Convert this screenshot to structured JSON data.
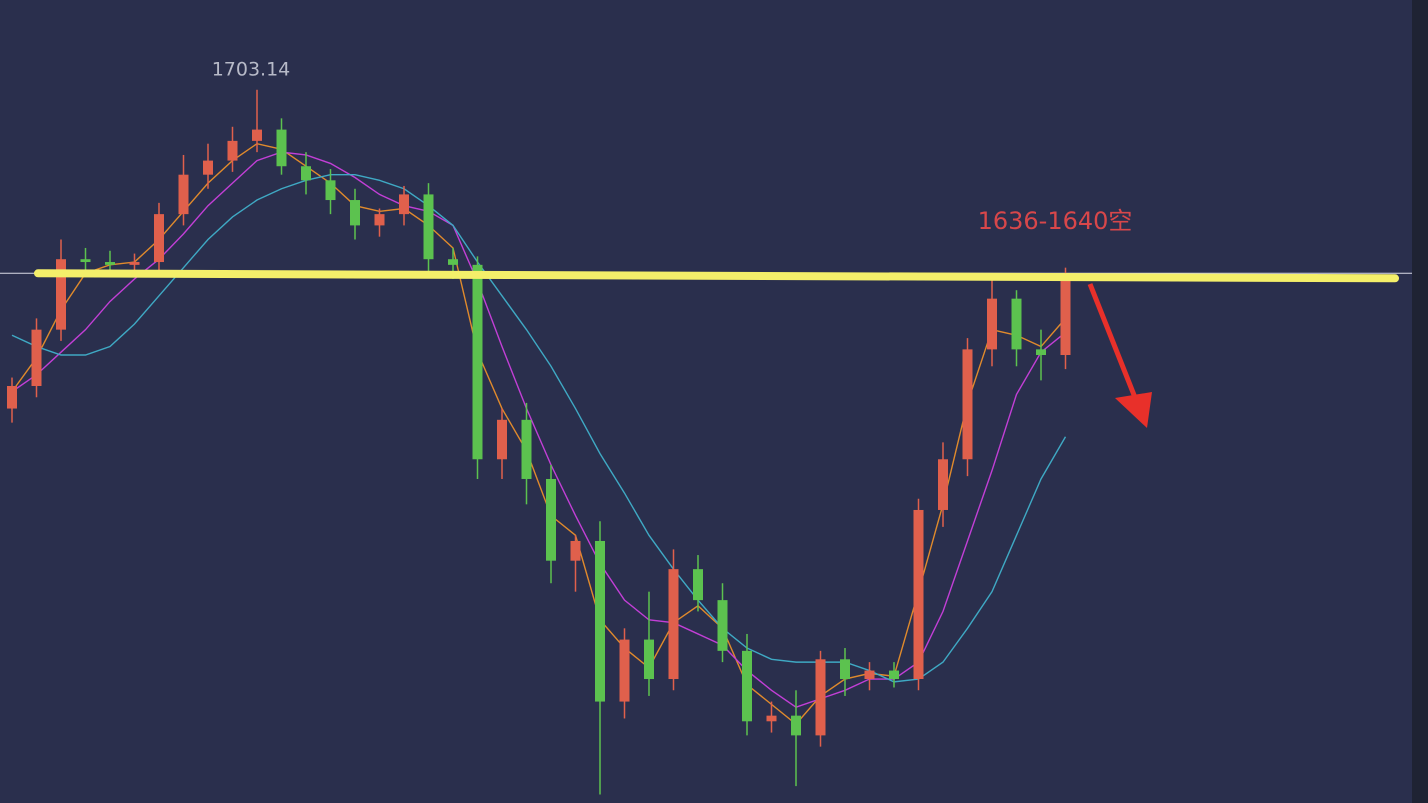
{
  "chart_data": {
    "type": "candlestick",
    "categories": [
      null,
      null,
      null,
      null,
      null,
      null,
      null,
      null,
      null,
      null,
      null,
      null,
      null,
      null,
      null,
      null,
      null,
      null,
      null,
      null,
      null,
      null,
      null,
      null,
      null,
      null,
      null,
      null,
      null,
      null,
      null,
      null,
      null,
      null,
      null,
      null,
      null,
      null,
      null,
      null,
      null,
      null,
      null,
      null
    ],
    "open": [
      1590,
      1598,
      1618,
      1643,
      1642,
      1641,
      1642,
      1659,
      1673,
      1678,
      1685,
      1689,
      1676,
      1671,
      1664,
      1655,
      1659,
      1666,
      1643,
      1641,
      1572,
      1586,
      1565,
      1536,
      1543,
      1486,
      1508,
      1494,
      1533,
      1522,
      1504,
      1479,
      1481,
      1474,
      1501,
      1494,
      1497,
      1494,
      1554,
      1572,
      1611,
      1629,
      1611,
      1609
    ],
    "high": [
      1601,
      1622,
      1650,
      1647,
      1646,
      1645,
      1663,
      1680,
      1684,
      1690,
      1703.14,
      1693,
      1681,
      1675,
      1668,
      1661,
      1669,
      1670,
      1647,
      1644,
      1590,
      1592,
      1570,
      1545,
      1550,
      1512,
      1525,
      1540,
      1538,
      1528,
      1510,
      1486,
      1490,
      1504,
      1505,
      1500,
      1500,
      1558,
      1578,
      1615,
      1636,
      1632,
      1618,
      1640
    ],
    "low": [
      1585,
      1594,
      1614,
      1638,
      1637,
      1637,
      1639,
      1655,
      1668,
      1674,
      1681,
      1673,
      1666,
      1659,
      1650,
      1651,
      1655,
      1638,
      1636,
      1565,
      1565,
      1556,
      1528,
      1525,
      1453,
      1480,
      1488,
      1490,
      1518,
      1500,
      1474,
      1475,
      1456,
      1470,
      1488,
      1490,
      1491,
      1490,
      1548,
      1566,
      1605,
      1605,
      1600,
      1604
    ],
    "close": [
      1598,
      1618,
      1643,
      1642,
      1641,
      1642,
      1659,
      1673,
      1678,
      1685,
      1689,
      1676,
      1671,
      1664,
      1655,
      1659,
      1666,
      1643,
      1641,
      1572,
      1586,
      1565,
      1536,
      1543,
      1486,
      1508,
      1494,
      1533,
      1522,
      1504,
      1479,
      1481,
      1474,
      1501,
      1494,
      1497,
      1494,
      1554,
      1572,
      1611,
      1629,
      1611,
      1609,
      1636
    ],
    "up_color": "#e0604c",
    "down_color": "#5cc24f",
    "series": [
      {
        "color": "#e08a2c",
        "values": [
          1596,
          1608,
          1625,
          1638,
          1641,
          1642,
          1650,
          1660,
          1670,
          1678,
          1684,
          1682,
          1676,
          1670,
          1662,
          1660,
          1661,
          1655,
          1647,
          1610,
          1590,
          1575,
          1552,
          1545,
          1515,
          1505,
          1498,
          1514,
          1520,
          1512,
          1492,
          1485,
          1478,
          1488,
          1494,
          1496,
          1495,
          1525,
          1556,
          1592,
          1618,
          1616,
          1612,
          1622
        ]
      },
      {
        "color": "#c23fd6",
        "values": [
          1596,
          1602,
          1610,
          1618,
          1628,
          1636,
          1643,
          1652,
          1662,
          1670,
          1678,
          1681,
          1680,
          1677,
          1672,
          1666,
          1662,
          1660,
          1655,
          1635,
          1612,
          1590,
          1570,
          1552,
          1535,
          1522,
          1515,
          1514,
          1510,
          1506,
          1497,
          1490,
          1484,
          1487,
          1490,
          1494,
          1494,
          1500,
          1518,
          1543,
          1568,
          1595,
          1610,
          1617
        ]
      },
      {
        "color": "#3fa9c4",
        "values": [
          1616,
          1612,
          1609,
          1609,
          1612,
          1620,
          1630,
          1640,
          1650,
          1658,
          1664,
          1668,
          1671,
          1673,
          1673,
          1671,
          1668,
          1662,
          1655,
          1642,
          1630,
          1618,
          1605,
          1590,
          1574,
          1560,
          1545,
          1533,
          1522,
          1512,
          1505,
          1501,
          1500,
          1500,
          1500,
          1497,
          1493,
          1494,
          1500,
          1512,
          1525,
          1545,
          1565,
          1580
        ]
      }
    ],
    "level": 1638,
    "level_color": "#f4ef6a",
    "annotation": "1636-1640空",
    "ylim": [
      1450,
      1735
    ]
  }
}
